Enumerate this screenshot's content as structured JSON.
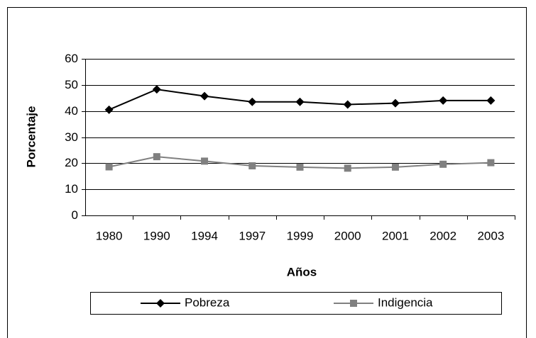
{
  "chart_data": {
    "type": "line",
    "x_label": "Años",
    "y_label": "Porcentaje",
    "categories": [
      "1980",
      "1990",
      "1994",
      "1997",
      "1999",
      "2000",
      "2001",
      "2002",
      "2003"
    ],
    "series": [
      {
        "name": "Pobreza",
        "color": "#000000",
        "marker": "diamond",
        "values": [
          40.5,
          48.3,
          45.7,
          43.5,
          43.5,
          42.5,
          43.0,
          44.0,
          44.0
        ]
      },
      {
        "name": "Indigencia",
        "color": "#808080",
        "marker": "square",
        "values": [
          18.6,
          22.5,
          20.8,
          19.0,
          18.5,
          18.1,
          18.5,
          19.6,
          20.2
        ]
      }
    ],
    "ylim": [
      0,
      60
    ],
    "yticks": [
      0,
      10,
      20,
      30,
      40,
      50,
      60
    ],
    "grid": true,
    "legend": "bottom"
  }
}
